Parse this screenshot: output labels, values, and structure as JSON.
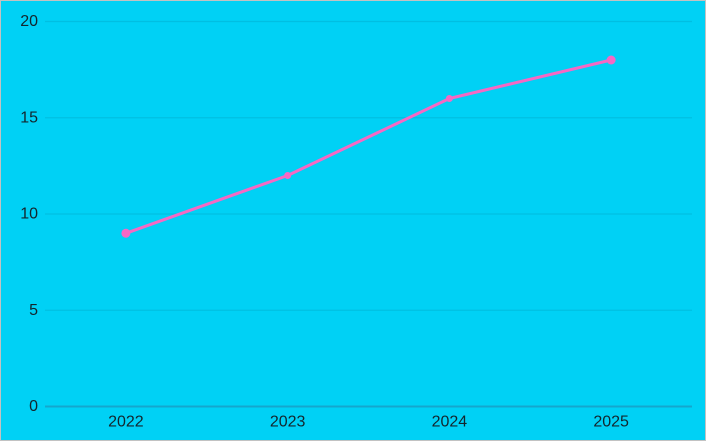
{
  "chart": {
    "background_color": "#00d1f5",
    "gridline_color": "#00bfe2",
    "axis_line_color": "#14a6cd",
    "line_color": "#f668c4",
    "marker_color": "#f668c4",
    "text_color": "#13262e",
    "border_color": "#c2c2c2"
  },
  "chart_data": {
    "type": "line",
    "categories": [
      "2022",
      "2023",
      "2024",
      "2025"
    ],
    "values": [
      9,
      12,
      16,
      18
    ],
    "title": "",
    "xlabel": "",
    "ylabel": "",
    "ylim": [
      0,
      20
    ],
    "yticks": [
      0,
      5,
      10,
      15,
      20
    ],
    "grid": true,
    "legend": false,
    "legend_position": "none",
    "marker": "circle",
    "line_width": 3
  }
}
